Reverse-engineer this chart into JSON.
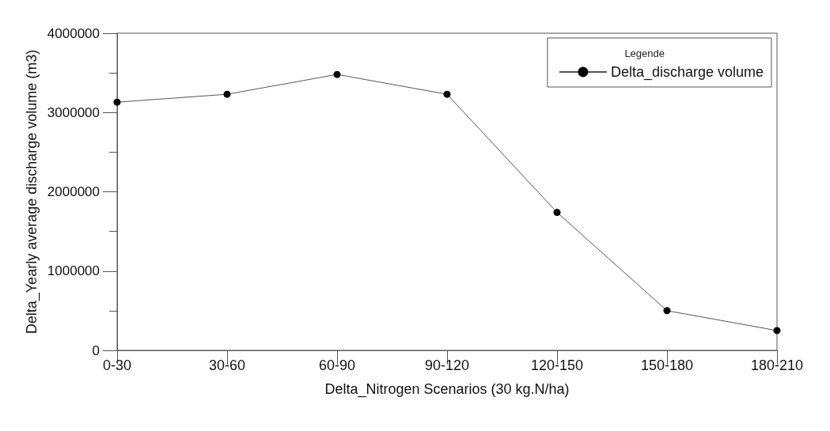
{
  "chart_data": {
    "type": "line",
    "xlabel": "Delta_Nitrogen Scenarios (30 kg.N/ha)",
    "ylabel": "Delta_Yearly average discharge volume (m3)",
    "legend_title": "Legende",
    "categories": [
      "0-30",
      "30-60",
      "60-90",
      "90-120",
      "120-150",
      "150-180",
      "180-210"
    ],
    "series": [
      {
        "name": "Delta_discharge volume",
        "color": "#000000",
        "values": [
          3130000,
          3230000,
          3480000,
          3230000,
          1740000,
          500000,
          250000
        ]
      }
    ],
    "ylim": [
      0,
      4000000
    ],
    "yticks": [
      0,
      1000000,
      2000000,
      3000000,
      4000000
    ],
    "grid": false,
    "legend": "top right",
    "marker": "circle",
    "line_style": "solid"
  }
}
